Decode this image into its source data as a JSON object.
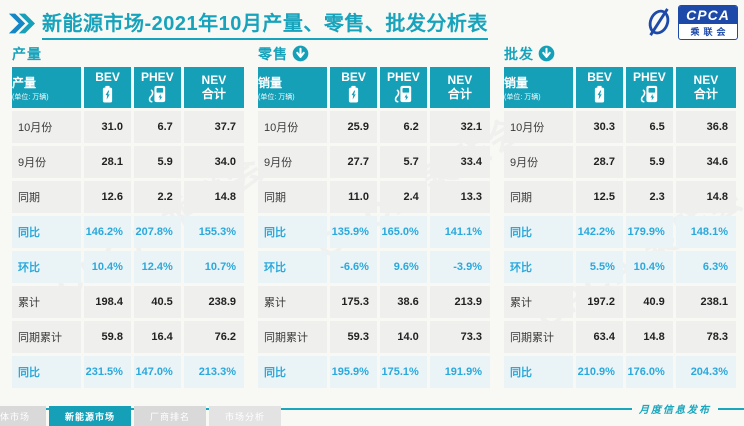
{
  "header": {
    "title": "新能源市场-2021年10月产量、零售、批发分析表",
    "logo_en": "CPCA",
    "logo_cn": "乘联会"
  },
  "columns": {
    "bev": "BEV",
    "phev": "PHEV",
    "nev_line1": "NEV",
    "nev_line2": "合计",
    "unit": "(单位: 万辆)"
  },
  "row_labels": [
    "10月份",
    "9月份",
    "同期",
    "同比",
    "环比",
    "累计",
    "同期累计",
    "同比"
  ],
  "highlight_rows": [
    3,
    4,
    7
  ],
  "tables": [
    {
      "section_title": "产量",
      "arrow_icon": false,
      "header_label": "产量",
      "rows": [
        [
          "31.0",
          "6.7",
          "37.7"
        ],
        [
          "28.1",
          "5.9",
          "34.0"
        ],
        [
          "12.6",
          "2.2",
          "14.8"
        ],
        [
          "146.2%",
          "207.8%",
          "155.3%"
        ],
        [
          "10.4%",
          "12.4%",
          "10.7%"
        ],
        [
          "198.4",
          "40.5",
          "238.9"
        ],
        [
          "59.8",
          "16.4",
          "76.2"
        ],
        [
          "231.5%",
          "147.0%",
          "213.3%"
        ]
      ]
    },
    {
      "section_title": "零售",
      "arrow_icon": true,
      "header_label": "销量",
      "rows": [
        [
          "25.9",
          "6.2",
          "32.1"
        ],
        [
          "27.7",
          "5.7",
          "33.4"
        ],
        [
          "11.0",
          "2.4",
          "13.3"
        ],
        [
          "135.9%",
          "165.0%",
          "141.1%"
        ],
        [
          "-6.6%",
          "9.6%",
          "-3.9%"
        ],
        [
          "175.3",
          "38.6",
          "213.9"
        ],
        [
          "59.3",
          "14.0",
          "73.3"
        ],
        [
          "195.9%",
          "175.1%",
          "191.9%"
        ]
      ]
    },
    {
      "section_title": "批发",
      "arrow_icon": true,
      "header_label": "销量",
      "rows": [
        [
          "30.3",
          "6.5",
          "36.8"
        ],
        [
          "28.7",
          "5.9",
          "34.6"
        ],
        [
          "12.5",
          "2.3",
          "14.8"
        ],
        [
          "142.2%",
          "179.9%",
          "148.1%"
        ],
        [
          "5.5%",
          "10.4%",
          "6.3%"
        ],
        [
          "197.2",
          "40.9",
          "238.1"
        ],
        [
          "63.4",
          "14.8",
          "78.3"
        ],
        [
          "210.9%",
          "176.0%",
          "204.3%"
        ]
      ]
    }
  ],
  "footer": {
    "publish_label": "月度信息发布",
    "tabs": [
      {
        "label": "体市场",
        "active": false
      },
      {
        "label": "新能源市场",
        "active": true
      },
      {
        "label": "厂商排名",
        "active": false
      },
      {
        "label": "市场分析",
        "active": false
      }
    ]
  },
  "watermark": "CPCA 乘联会",
  "colors": {
    "teal": "#16A0B8",
    "title_teal": "#17A3BB",
    "highlight_text": "#2BA9DC",
    "row_bg": "#EFEFEE",
    "highlight_row_bg": "#EAF3F6",
    "logo_blue": "#1D49A8"
  }
}
